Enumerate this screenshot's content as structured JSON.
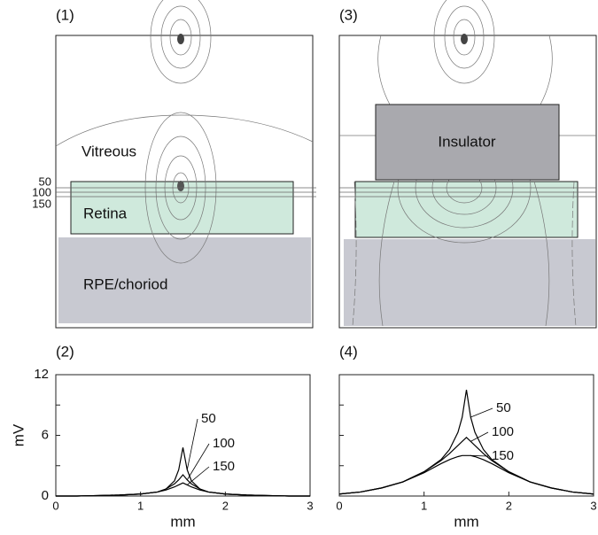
{
  "diagrams": [
    {
      "label": "(1)",
      "regions": [
        "Vitreous",
        "Retina",
        "RPE/choriod"
      ],
      "depth_labels": [
        "50",
        "100",
        "150"
      ]
    },
    {
      "label": "(3)",
      "regions": [
        "Insulator"
      ]
    }
  ],
  "chart_data": [
    {
      "type": "line",
      "panel_label": "(2)",
      "xlabel": "mm",
      "ylabel": "mV",
      "x": [
        0,
        0.25,
        0.5,
        0.75,
        1,
        1.2,
        1.3,
        1.4,
        1.45,
        1.5,
        1.55,
        1.6,
        1.7,
        1.8,
        2,
        2.25,
        2.5,
        2.75,
        3
      ],
      "series": [
        {
          "name": "50",
          "color": "#000000",
          "values": [
            0,
            0,
            0.05,
            0.1,
            0.2,
            0.4,
            0.7,
            1.5,
            2.6,
            4.8,
            2.6,
            1.5,
            0.7,
            0.4,
            0.2,
            0.1,
            0.05,
            0,
            0
          ]
        },
        {
          "name": "100",
          "color": "#000000",
          "values": [
            0,
            0,
            0.05,
            0.1,
            0.2,
            0.4,
            0.7,
            1.2,
            1.6,
            2.1,
            1.6,
            1.2,
            0.7,
            0.4,
            0.2,
            0.1,
            0.05,
            0,
            0
          ]
        },
        {
          "name": "150",
          "color": "#000000",
          "values": [
            0,
            0,
            0.05,
            0.1,
            0.2,
            0.4,
            0.6,
            0.9,
            1.1,
            1.3,
            1.1,
            0.9,
            0.6,
            0.4,
            0.2,
            0.1,
            0.05,
            0,
            0
          ]
        }
      ],
      "xlim": [
        0,
        3
      ],
      "xticks": [
        0,
        1,
        2,
        3
      ],
      "ylim": [
        0,
        12
      ],
      "yticks": [
        0,
        6,
        12
      ]
    },
    {
      "type": "line",
      "panel_label": "(4)",
      "xlabel": "mm",
      "x": [
        0,
        0.25,
        0.5,
        0.75,
        1,
        1.2,
        1.3,
        1.4,
        1.45,
        1.5,
        1.55,
        1.6,
        1.7,
        1.8,
        2,
        2.25,
        2.5,
        2.75,
        3
      ],
      "series": [
        {
          "name": "50",
          "color": "#000000",
          "values": [
            0.2,
            0.4,
            0.8,
            1.4,
            2.4,
            3.6,
            4.6,
            6.3,
            7.8,
            10.5,
            7.8,
            6.3,
            4.6,
            3.6,
            2.4,
            1.4,
            0.8,
            0.4,
            0.2
          ]
        },
        {
          "name": "100",
          "color": "#000000",
          "values": [
            0.2,
            0.4,
            0.8,
            1.4,
            2.4,
            3.5,
            4.2,
            5.0,
            5.4,
            5.8,
            5.4,
            5.0,
            4.2,
            3.5,
            2.4,
            1.4,
            0.8,
            0.4,
            0.2
          ]
        },
        {
          "name": "150",
          "color": "#000000",
          "values": [
            0.2,
            0.4,
            0.8,
            1.4,
            2.3,
            3.2,
            3.6,
            3.9,
            4.0,
            4.0,
            4.0,
            3.9,
            3.6,
            3.2,
            2.3,
            1.4,
            0.8,
            0.4,
            0.2
          ]
        }
      ],
      "xlim": [
        0,
        3
      ],
      "xticks": [
        0,
        1,
        2,
        3
      ],
      "ylim": [
        0,
        12
      ]
    }
  ]
}
